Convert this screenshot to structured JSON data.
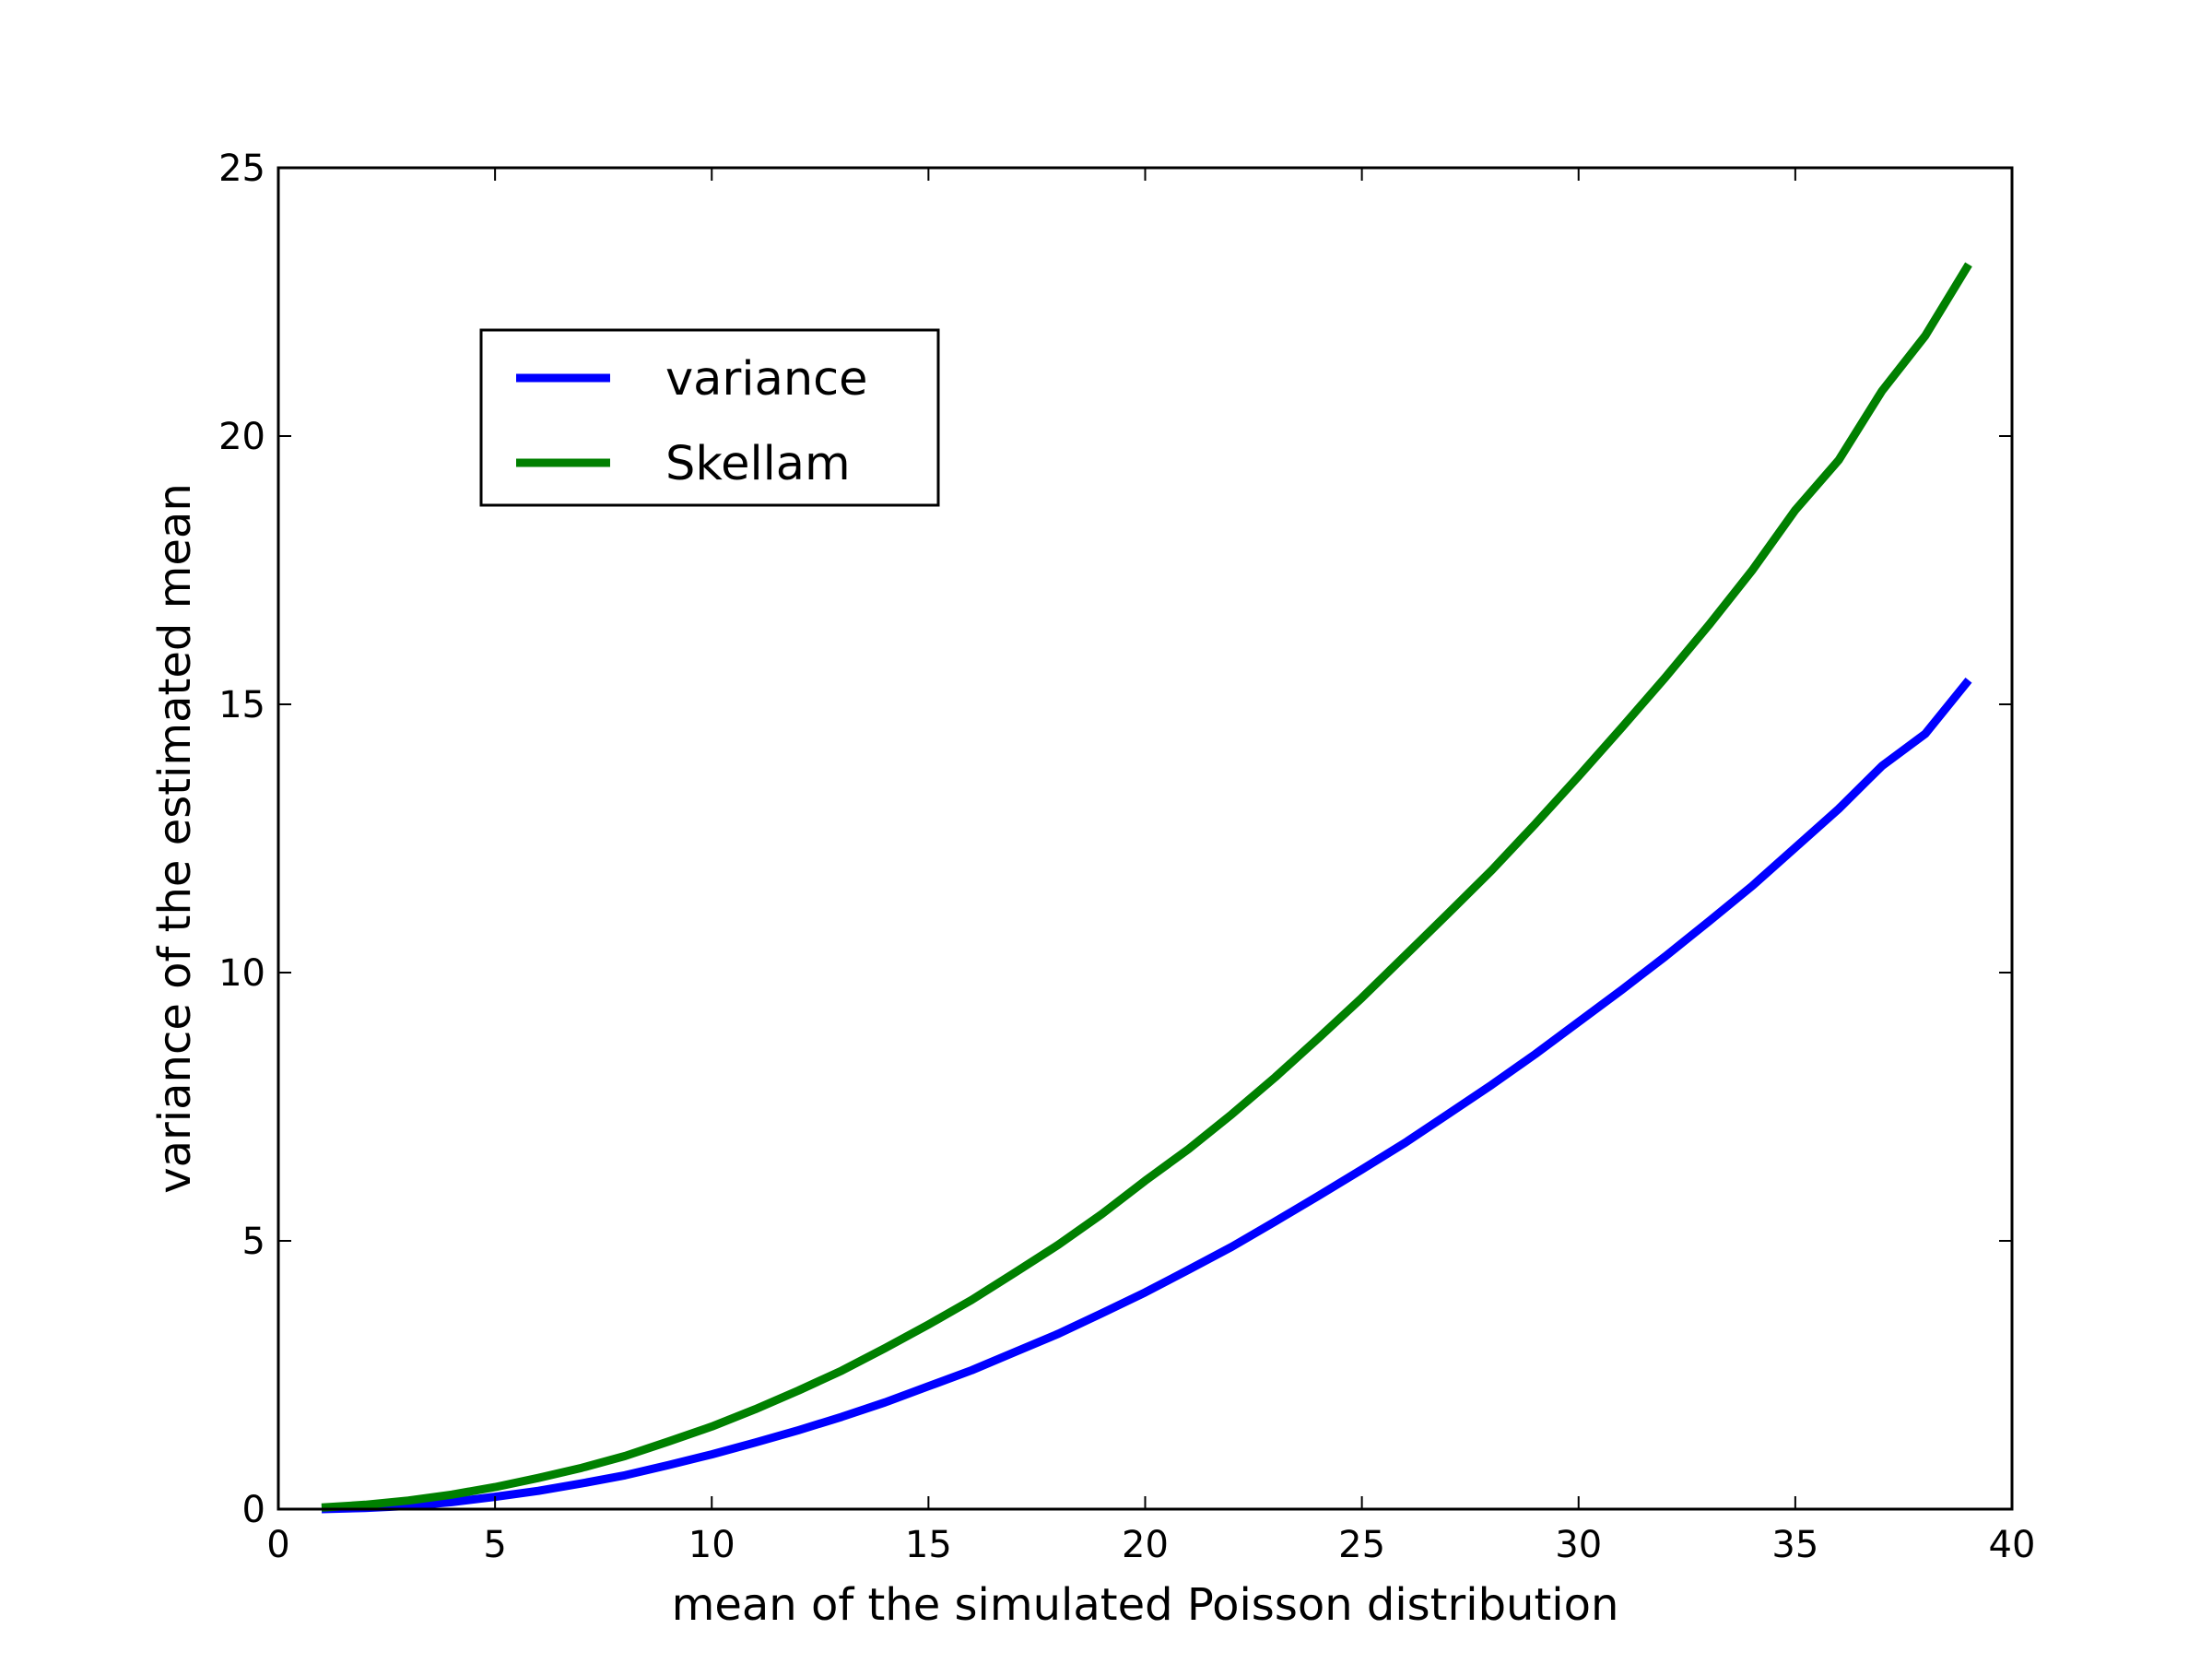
{
  "chart_data": {
    "type": "line",
    "title": "",
    "xlabel": "mean of the simulated Poisson distribution",
    "ylabel": "variance of the estimated mean",
    "xlim": [
      0,
      40
    ],
    "ylim": [
      0,
      25
    ],
    "xticks": [
      "0",
      "5",
      "10",
      "15",
      "20",
      "25",
      "30",
      "35",
      "40"
    ],
    "yticks": [
      "0",
      "5",
      "10",
      "15",
      "20",
      "25"
    ],
    "grid": false,
    "legend_position": "upper-left",
    "x": [
      1,
      2,
      3,
      4,
      5,
      6,
      7,
      8,
      9,
      10,
      11,
      12,
      13,
      14,
      15,
      16,
      17,
      18,
      19,
      20,
      21,
      22,
      23,
      24,
      25,
      26,
      27,
      28,
      29,
      30,
      31,
      32,
      33,
      34,
      35,
      36,
      37,
      38,
      39
    ],
    "series": [
      {
        "name": "variance",
        "color": "#0000ff",
        "values": [
          0.0,
          0.02,
          0.06,
          0.13,
          0.23,
          0.34,
          0.48,
          0.63,
          0.82,
          1.02,
          1.24,
          1.47,
          1.72,
          1.99,
          2.29,
          2.59,
          2.93,
          3.27,
          3.65,
          4.04,
          4.46,
          4.89,
          5.36,
          5.84,
          6.33,
          6.83,
          7.37,
          7.91,
          8.48,
          9.08,
          9.68,
          10.3,
          10.95,
          11.61,
          12.33,
          13.05,
          13.85,
          14.45,
          15.45
        ]
      },
      {
        "name": "Skellam",
        "color": "#008000",
        "values": [
          0.03,
          0.08,
          0.16,
          0.27,
          0.41,
          0.58,
          0.77,
          0.99,
          1.26,
          1.54,
          1.86,
          2.21,
          2.58,
          3.0,
          3.44,
          3.9,
          4.41,
          4.93,
          5.5,
          6.12,
          6.71,
          7.36,
          8.05,
          8.78,
          9.53,
          10.32,
          11.11,
          11.91,
          12.77,
          13.66,
          14.57,
          15.5,
          16.47,
          17.49,
          18.62,
          19.55,
          20.84,
          21.87,
          23.2
        ]
      }
    ]
  }
}
